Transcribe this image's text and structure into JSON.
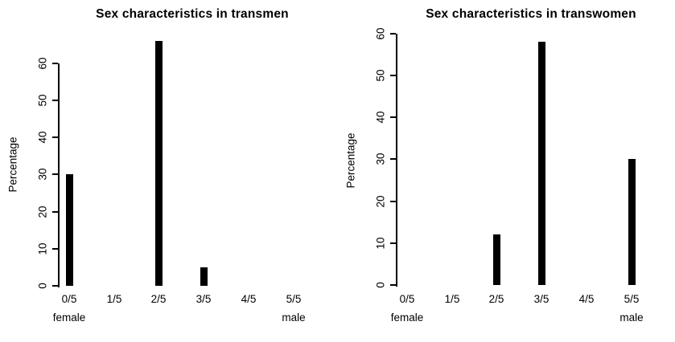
{
  "figure": {
    "background_color": "#ffffff",
    "text_color": "#000000"
  },
  "chart_data": [
    {
      "type": "bar",
      "title": "Sex characteristics in transmen",
      "categories": [
        "0/5",
        "1/5",
        "2/5",
        "3/5",
        "4/5",
        "5/5"
      ],
      "values": [
        30,
        0,
        66,
        5,
        0,
        0
      ],
      "ylabel": "Percentage",
      "xlabel_left": "female",
      "xlabel_right": "male",
      "yticks": [
        0,
        10,
        20,
        30,
        40,
        50,
        60
      ],
      "ylim": [
        0,
        67
      ],
      "bar_color": "#000000",
      "grid": false,
      "legend": false
    },
    {
      "type": "bar",
      "title": "Sex characteristics in transwomen",
      "categories": [
        "0/5",
        "1/5",
        "2/5",
        "3/5",
        "4/5",
        "5/5"
      ],
      "values": [
        0,
        0,
        12,
        58,
        0,
        30
      ],
      "ylabel": "Percentage",
      "xlabel_left": "female",
      "xlabel_right": "male",
      "yticks": [
        0,
        10,
        20,
        30,
        40,
        50,
        60
      ],
      "ylim": [
        0,
        60.5
      ],
      "bar_color": "#000000",
      "grid": false,
      "legend": false
    }
  ]
}
